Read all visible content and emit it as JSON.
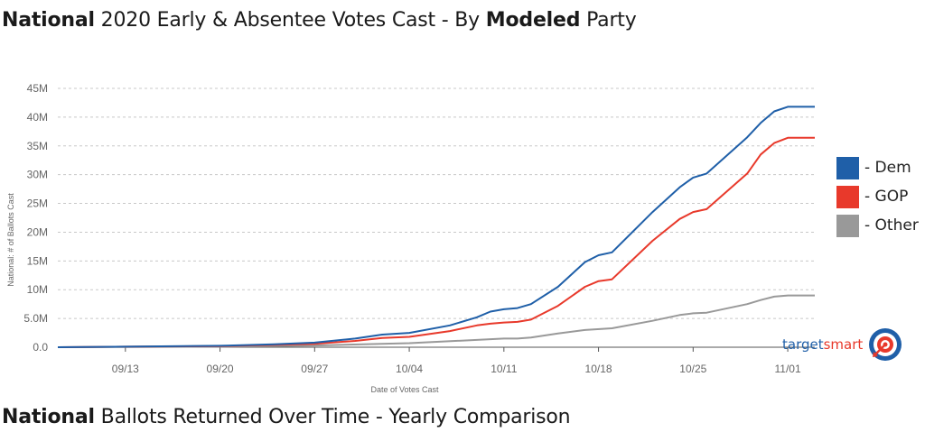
{
  "header": {
    "title_bold": "National",
    "title_part1": " 2020 Early & Absentee Votes Cast - By ",
    "title_bold2": "Modeled",
    "title_part2": " Party"
  },
  "footer_header": {
    "title_bold": "National",
    "title_rest": " Ballots Returned Over Time - Yearly Comparison"
  },
  "brand": {
    "name_part1": "target",
    "name_part2": "smart"
  },
  "chart_data": {
    "type": "line",
    "xlabel": "Date of Votes Cast",
    "ylabel": "National: # of Ballots Cast",
    "x_ticks": [
      "09/13",
      "09/20",
      "09/27",
      "10/04",
      "10/11",
      "10/18",
      "10/25",
      "11/01"
    ],
    "y_ticks": [
      "0.0",
      "5.0M",
      "10M",
      "15M",
      "20M",
      "25M",
      "30M",
      "35M",
      "40M",
      "45M"
    ],
    "ylim": [
      0,
      45
    ],
    "y_unit": "M",
    "grid": true,
    "legend": "right",
    "x_range": [
      "09/08",
      "11/03"
    ],
    "series": [
      {
        "name": "- Dem",
        "color": "#1f5fa8",
        "points": [
          [
            "09/08",
            0
          ],
          [
            "09/13",
            0.1
          ],
          [
            "09/20",
            0.25
          ],
          [
            "09/24",
            0.5
          ],
          [
            "09/27",
            0.8
          ],
          [
            "09/30",
            1.5
          ],
          [
            "10/02",
            2.2
          ],
          [
            "10/04",
            2.5
          ],
          [
            "10/07",
            3.8
          ],
          [
            "10/09",
            5.2
          ],
          [
            "10/10",
            6.2
          ],
          [
            "10/11",
            6.6
          ],
          [
            "10/12",
            6.8
          ],
          [
            "10/13",
            7.5
          ],
          [
            "10/15",
            10.5
          ],
          [
            "10/17",
            14.8
          ],
          [
            "10/18",
            16.0
          ],
          [
            "10/19",
            16.5
          ],
          [
            "10/22",
            23.5
          ],
          [
            "10/24",
            27.8
          ],
          [
            "10/25",
            29.5
          ],
          [
            "10/26",
            30.2
          ],
          [
            "10/29",
            36.5
          ],
          [
            "10/30",
            39.0
          ],
          [
            "10/31",
            41.0
          ],
          [
            "11/01",
            41.8
          ],
          [
            "11/03",
            41.8
          ]
        ]
      },
      {
        "name": "- GOP",
        "color": "#e8392b",
        "points": [
          [
            "09/08",
            0
          ],
          [
            "09/13",
            0.1
          ],
          [
            "09/20",
            0.2
          ],
          [
            "09/24",
            0.4
          ],
          [
            "09/27",
            0.6
          ],
          [
            "09/30",
            1.1
          ],
          [
            "10/02",
            1.6
          ],
          [
            "10/04",
            1.8
          ],
          [
            "10/07",
            2.8
          ],
          [
            "10/09",
            3.8
          ],
          [
            "10/10",
            4.1
          ],
          [
            "10/11",
            4.3
          ],
          [
            "10/12",
            4.4
          ],
          [
            "10/13",
            4.8
          ],
          [
            "10/15",
            7.2
          ],
          [
            "10/17",
            10.5
          ],
          [
            "10/18",
            11.5
          ],
          [
            "10/19",
            11.8
          ],
          [
            "10/22",
            18.5
          ],
          [
            "10/24",
            22.3
          ],
          [
            "10/25",
            23.5
          ],
          [
            "10/26",
            24.0
          ],
          [
            "10/29",
            30.2
          ],
          [
            "10/30",
            33.5
          ],
          [
            "10/31",
            35.5
          ],
          [
            "11/01",
            36.4
          ],
          [
            "11/03",
            36.4
          ]
        ]
      },
      {
        "name": "- Other",
        "color": "#999999",
        "points": [
          [
            "09/08",
            0
          ],
          [
            "09/13",
            0.05
          ],
          [
            "09/20",
            0.1
          ],
          [
            "09/27",
            0.3
          ],
          [
            "10/04",
            0.7
          ],
          [
            "10/11",
            1.5
          ],
          [
            "10/12",
            1.5
          ],
          [
            "10/13",
            1.7
          ],
          [
            "10/15",
            2.4
          ],
          [
            "10/17",
            3.0
          ],
          [
            "10/19",
            3.3
          ],
          [
            "10/22",
            4.6
          ],
          [
            "10/24",
            5.6
          ],
          [
            "10/25",
            5.9
          ],
          [
            "10/26",
            6.0
          ],
          [
            "10/29",
            7.5
          ],
          [
            "10/30",
            8.2
          ],
          [
            "10/31",
            8.8
          ],
          [
            "11/01",
            9.0
          ],
          [
            "11/03",
            9.0
          ]
        ]
      }
    ]
  }
}
